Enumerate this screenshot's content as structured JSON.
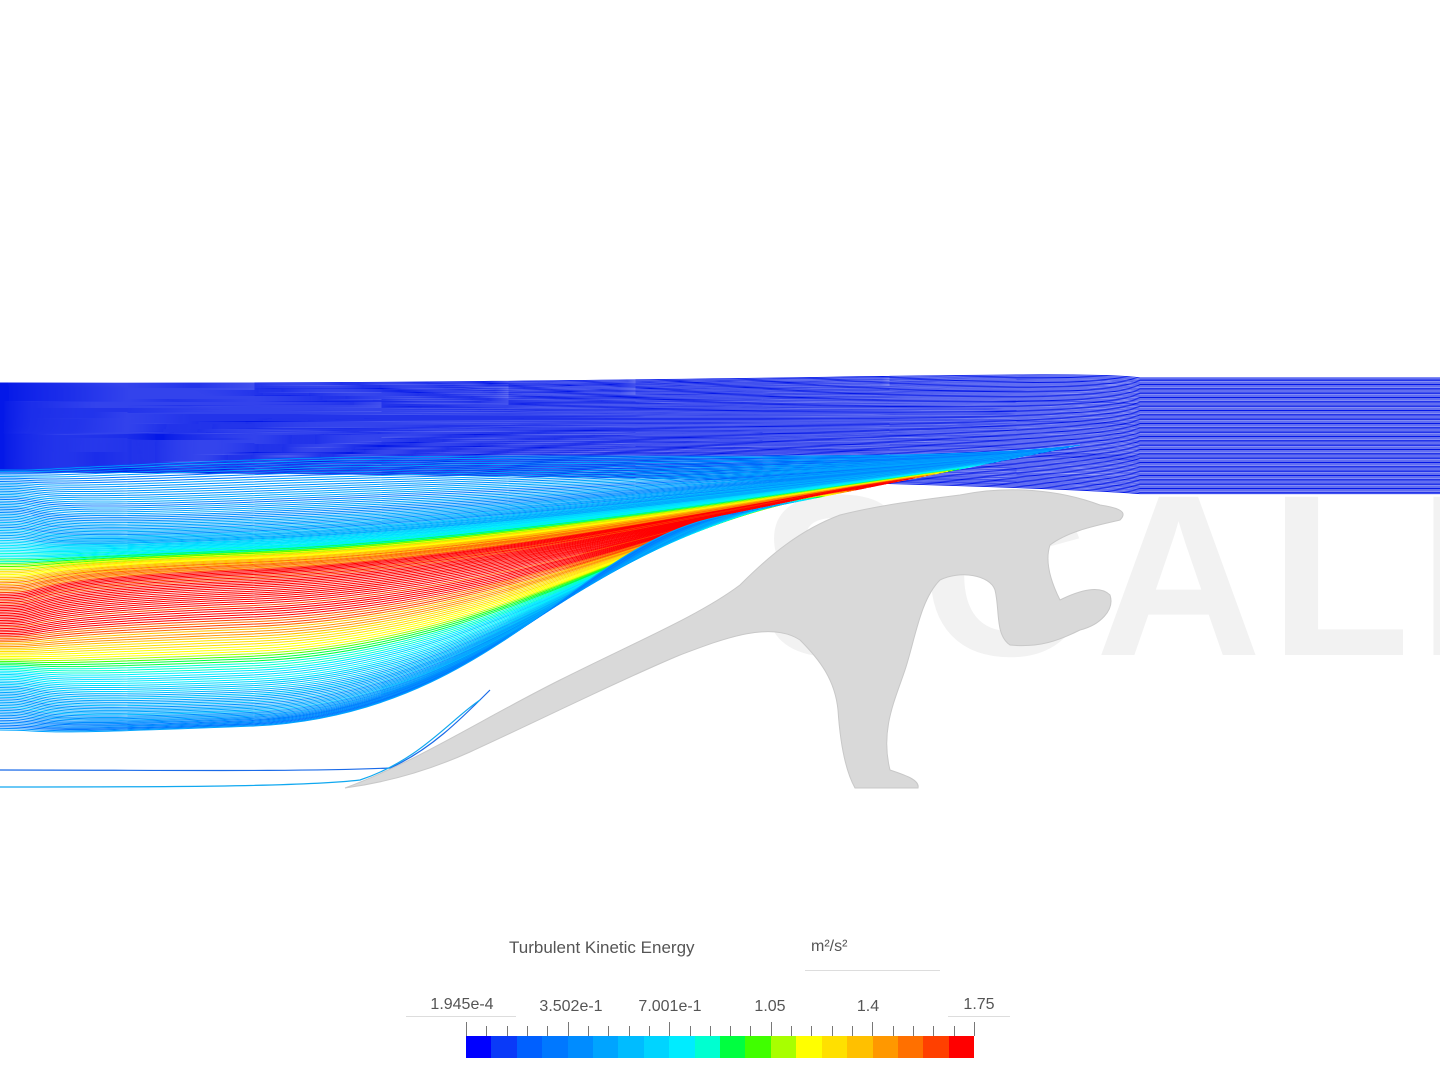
{
  "watermark": "SIMSCALE",
  "legend": {
    "title": "Turbulent Kinetic Energy",
    "unit": "m²/s²",
    "labels": [
      "1.945e-4",
      "3.502e-1",
      "7.001e-1",
      "1.05",
      "1.4",
      "1.75"
    ],
    "colors": [
      "#0000ff",
      "#0a3af8",
      "#0060ff",
      "#0078ff",
      "#008cff",
      "#00a4ff",
      "#00bcff",
      "#00d4ff",
      "#00ecff",
      "#00ffd0",
      "#00ff40",
      "#40ff00",
      "#a8ff00",
      "#ffff00",
      "#ffe000",
      "#ffc000",
      "#ff9800",
      "#ff7000",
      "#ff4000",
      "#ff0000"
    ]
  }
}
